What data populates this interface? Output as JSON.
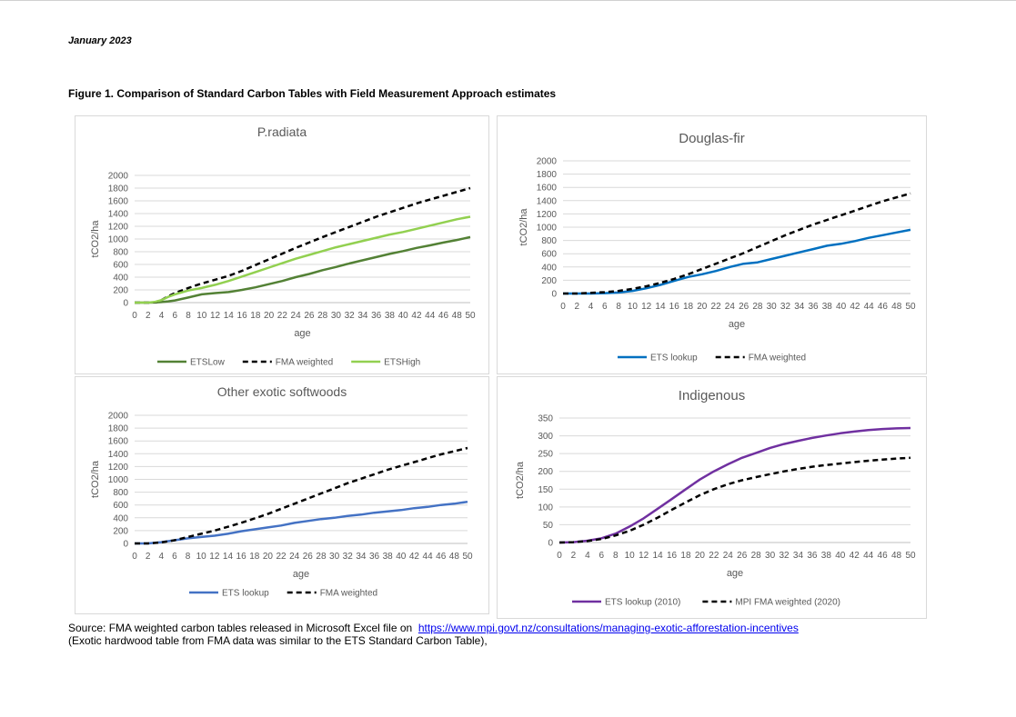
{
  "header": {
    "date": "January 2023"
  },
  "figure": {
    "title": "Figure 1. Comparison of Standard Carbon Tables with Field Measurement Approach estimates"
  },
  "source": {
    "line1_prefix": "Source: FMA weighted carbon tables released in Microsoft Excel file on",
    "link": "https://www.mpi.govt.nz/consultations/managing-exotic-afforestation-incentives",
    "line2": "(Exotic hardwood table from FMA data was similar to the ETS Standard Carbon Table),"
  },
  "chart_data": [
    {
      "type": "line",
      "title": "P.radiata",
      "xlabel": "age",
      "ylabel": "tCO2/ha",
      "xlim": [
        0,
        50
      ],
      "ylim": [
        0,
        2000
      ],
      "y_ticks": [
        0,
        200,
        400,
        600,
        800,
        1000,
        1200,
        1400,
        1600,
        1800,
        2000
      ],
      "x_ticks": [
        0,
        2,
        4,
        6,
        8,
        10,
        12,
        14,
        16,
        18,
        20,
        22,
        24,
        26,
        28,
        30,
        32,
        34,
        36,
        38,
        40,
        42,
        44,
        46,
        48,
        50
      ],
      "grid": true,
      "legend": "bottom",
      "series": [
        {
          "name": "ETSLow",
          "color": "#538135",
          "dash": false,
          "x": [
            0,
            2,
            3,
            4,
            5,
            6,
            8,
            10,
            12,
            14,
            16,
            18,
            20,
            22,
            24,
            26,
            28,
            30,
            32,
            34,
            36,
            38,
            40,
            42,
            44,
            46,
            48,
            50
          ],
          "y": [
            0,
            0,
            2,
            8,
            20,
            35,
            80,
            130,
            150,
            165,
            200,
            240,
            290,
            340,
            400,
            450,
            510,
            560,
            615,
            665,
            715,
            765,
            810,
            860,
            900,
            945,
            985,
            1030
          ]
        },
        {
          "name": "FMA weighted",
          "color": "#000000",
          "dash": true,
          "x": [
            0,
            2,
            3,
            4,
            5,
            6,
            8,
            10,
            12,
            14,
            16,
            18,
            20,
            22,
            24,
            26,
            28,
            30,
            32,
            34,
            36,
            38,
            40,
            42,
            44,
            46,
            48,
            50
          ],
          "y": [
            0,
            0,
            5,
            40,
            100,
            150,
            230,
            300,
            360,
            420,
            500,
            590,
            680,
            770,
            860,
            945,
            1030,
            1110,
            1190,
            1270,
            1350,
            1420,
            1490,
            1560,
            1620,
            1680,
            1740,
            1800
          ]
        },
        {
          "name": "ETSHigh",
          "color": "#92d050",
          "dash": false,
          "x": [
            0,
            2,
            3,
            4,
            5,
            6,
            8,
            10,
            12,
            14,
            16,
            18,
            20,
            22,
            24,
            26,
            28,
            30,
            32,
            34,
            36,
            38,
            40,
            42,
            44,
            46,
            48,
            50
          ],
          "y": [
            0,
            0,
            10,
            40,
            90,
            130,
            190,
            230,
            280,
            340,
            410,
            480,
            550,
            620,
            690,
            750,
            810,
            870,
            920,
            970,
            1020,
            1070,
            1110,
            1160,
            1210,
            1260,
            1310,
            1350
          ]
        }
      ]
    },
    {
      "type": "line",
      "title": "Douglas-fir",
      "xlabel": "age",
      "ylabel": "tCO2/ha",
      "xlim": [
        0,
        50
      ],
      "ylim": [
        0,
        2000
      ],
      "y_ticks": [
        0,
        200,
        400,
        600,
        800,
        1000,
        1200,
        1400,
        1600,
        1800,
        2000
      ],
      "x_ticks": [
        0,
        2,
        4,
        6,
        8,
        10,
        12,
        14,
        16,
        18,
        20,
        22,
        24,
        26,
        28,
        30,
        32,
        34,
        36,
        38,
        40,
        42,
        44,
        46,
        48,
        50
      ],
      "grid": true,
      "legend": "bottom",
      "series": [
        {
          "name": "ETS lookup",
          "color": "#0070c0",
          "dash": false,
          "x": [
            0,
            2,
            4,
            6,
            8,
            10,
            12,
            14,
            16,
            18,
            20,
            22,
            24,
            26,
            28,
            30,
            32,
            34,
            36,
            38,
            40,
            42,
            44,
            46,
            48,
            50
          ],
          "y": [
            0,
            0,
            0,
            5,
            15,
            40,
            80,
            130,
            190,
            250,
            290,
            340,
            400,
            450,
            470,
            520,
            570,
            620,
            670,
            720,
            750,
            790,
            840,
            880,
            920,
            960
          ]
        },
        {
          "name": "FMA weighted",
          "color": "#000000",
          "dash": true,
          "x": [
            0,
            2,
            4,
            6,
            8,
            10,
            12,
            14,
            16,
            18,
            20,
            22,
            24,
            26,
            28,
            30,
            32,
            34,
            36,
            38,
            40,
            42,
            44,
            46,
            48,
            50
          ],
          "y": [
            0,
            0,
            10,
            20,
            40,
            70,
            110,
            160,
            220,
            290,
            370,
            450,
            530,
            610,
            700,
            790,
            880,
            960,
            1040,
            1110,
            1180,
            1250,
            1320,
            1390,
            1450,
            1510
          ]
        }
      ]
    },
    {
      "type": "line",
      "title": "Other exotic softwoods",
      "xlabel": "age",
      "ylabel": "tCO2/ha",
      "xlim": [
        0,
        50
      ],
      "ylim": [
        0,
        2000
      ],
      "y_ticks": [
        0,
        200,
        400,
        600,
        800,
        1000,
        1200,
        1400,
        1600,
        1800,
        2000
      ],
      "x_ticks": [
        0,
        2,
        4,
        6,
        8,
        10,
        12,
        14,
        16,
        18,
        20,
        22,
        24,
        26,
        28,
        30,
        32,
        34,
        36,
        38,
        40,
        42,
        44,
        46,
        48,
        50
      ],
      "grid": true,
      "legend": "bottom",
      "series": [
        {
          "name": "ETS lookup",
          "color": "#4472c4",
          "dash": false,
          "x": [
            0,
            2,
            4,
            6,
            8,
            10,
            12,
            14,
            16,
            18,
            20,
            22,
            24,
            26,
            28,
            30,
            32,
            34,
            36,
            38,
            40,
            42,
            44,
            46,
            48,
            50
          ],
          "y": [
            0,
            0,
            20,
            50,
            80,
            100,
            120,
            150,
            190,
            220,
            250,
            280,
            320,
            350,
            380,
            400,
            430,
            450,
            480,
            500,
            520,
            550,
            570,
            600,
            620,
            650
          ]
        },
        {
          "name": "FMA weighted",
          "color": "#000000",
          "dash": true,
          "x": [
            0,
            2,
            4,
            6,
            8,
            10,
            12,
            14,
            16,
            18,
            20,
            22,
            24,
            26,
            28,
            30,
            32,
            34,
            36,
            38,
            40,
            42,
            44,
            46,
            48,
            50
          ],
          "y": [
            0,
            0,
            15,
            50,
            100,
            150,
            200,
            260,
            320,
            390,
            460,
            540,
            620,
            700,
            780,
            860,
            940,
            1010,
            1080,
            1150,
            1210,
            1270,
            1330,
            1390,
            1440,
            1490
          ]
        }
      ]
    },
    {
      "type": "line",
      "title": "Indigenous",
      "xlabel": "age",
      "ylabel": "tCO2/ha",
      "xlim": [
        0,
        50
      ],
      "ylim": [
        0,
        350
      ],
      "y_ticks": [
        0,
        50,
        100,
        150,
        200,
        250,
        300,
        350
      ],
      "x_ticks": [
        0,
        2,
        4,
        6,
        8,
        10,
        12,
        14,
        16,
        18,
        20,
        22,
        24,
        26,
        28,
        30,
        32,
        34,
        36,
        38,
        40,
        42,
        44,
        46,
        48,
        50
      ],
      "grid": true,
      "legend": "bottom",
      "series": [
        {
          "name": "ETS lookup (2010)",
          "color": "#7030a0",
          "dash": false,
          "x": [
            0,
            2,
            4,
            6,
            8,
            10,
            12,
            14,
            16,
            18,
            20,
            22,
            24,
            26,
            28,
            30,
            32,
            34,
            36,
            38,
            40,
            42,
            44,
            46,
            48,
            50
          ],
          "y": [
            0,
            1,
            5,
            12,
            25,
            45,
            68,
            95,
            122,
            150,
            177,
            200,
            220,
            238,
            252,
            266,
            277,
            286,
            294,
            301,
            307,
            312,
            316,
            319,
            321,
            322
          ]
        },
        {
          "name": "MPI FMA weighted (2020)",
          "color": "#000000",
          "dash": true,
          "x": [
            0,
            2,
            4,
            6,
            8,
            10,
            12,
            14,
            16,
            18,
            20,
            22,
            24,
            26,
            28,
            30,
            32,
            34,
            36,
            38,
            40,
            42,
            44,
            46,
            48,
            50
          ],
          "y": [
            0,
            1,
            4,
            10,
            20,
            33,
            50,
            70,
            92,
            113,
            133,
            150,
            164,
            175,
            184,
            192,
            200,
            207,
            213,
            218,
            222,
            226,
            230,
            233,
            236,
            238
          ]
        }
      ]
    }
  ]
}
